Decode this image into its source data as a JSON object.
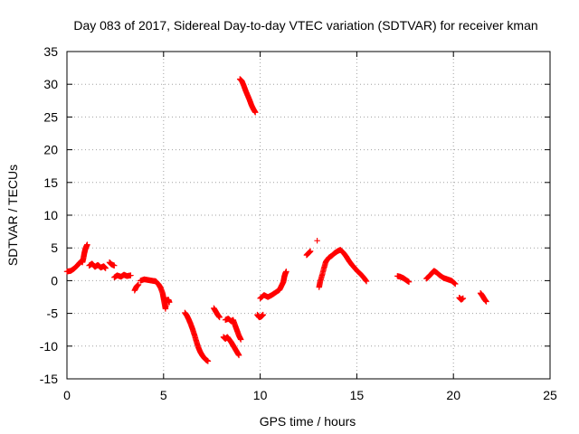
{
  "chart_data": {
    "type": "scatter",
    "title": "Day 083 of 2017, Sidereal Day-to-day VTEC variation (SDTVAR) for receiver kman",
    "xlabel": "GPS time / hours",
    "ylabel": "SDTVAR / TECUs",
    "xlim": [
      0,
      25
    ],
    "ylim": [
      -15,
      35
    ],
    "xticks": [
      0,
      5,
      10,
      15,
      20,
      25
    ],
    "yticks": [
      -15,
      -10,
      -5,
      0,
      5,
      10,
      15,
      20,
      25,
      30,
      35
    ],
    "xtick_labels": [
      "0",
      "5",
      "10",
      "15",
      "20",
      "25"
    ],
    "ytick_labels": [
      "-15",
      "-10",
      "-5",
      "0",
      "5",
      "10",
      "15",
      "20",
      "25",
      "30",
      "35"
    ],
    "grid": true,
    "marker": "+",
    "color": "#ff0000",
    "series": [
      {
        "name": "SDTVAR",
        "segments": [
          [
            [
              0.0,
              1.4
            ],
            [
              0.2,
              1.5
            ],
            [
              0.35,
              1.8
            ],
            [
              0.5,
              2.2
            ],
            [
              0.65,
              2.7
            ],
            [
              0.75,
              3.0
            ],
            [
              0.8,
              2.8
            ],
            [
              0.85,
              3.4
            ],
            [
              0.9,
              4.2
            ],
            [
              0.95,
              4.8
            ],
            [
              1.0,
              5.2
            ],
            [
              1.05,
              5.5
            ]
          ],
          [
            [
              1.15,
              2.3
            ],
            [
              1.3,
              2.6
            ],
            [
              1.45,
              2.1
            ],
            [
              1.6,
              2.4
            ],
            [
              1.75,
              2.0
            ],
            [
              1.9,
              2.2
            ],
            [
              2.0,
              1.9
            ]
          ],
          [
            [
              2.2,
              2.8
            ],
            [
              2.3,
              2.5
            ],
            [
              2.45,
              2.3
            ]
          ],
          [
            [
              2.45,
              0.5
            ],
            [
              2.6,
              0.8
            ],
            [
              2.8,
              0.6
            ],
            [
              2.95,
              0.9
            ],
            [
              3.1,
              0.7
            ],
            [
              3.3,
              0.8
            ]
          ],
          [
            [
              3.5,
              -1.5
            ],
            [
              3.6,
              -0.9
            ],
            [
              3.7,
              -0.6
            ]
          ],
          [
            [
              3.8,
              0.0
            ],
            [
              4.0,
              0.2
            ],
            [
              4.2,
              0.1
            ],
            [
              4.4,
              0.0
            ],
            [
              4.6,
              -0.1
            ],
            [
              4.75,
              -0.6
            ],
            [
              4.85,
              -1.1
            ],
            [
              4.95,
              -1.9
            ],
            [
              5.0,
              -2.7
            ],
            [
              5.05,
              -3.5
            ],
            [
              5.1,
              -4.3
            ],
            [
              5.15,
              -3.0
            ],
            [
              5.25,
              -2.9
            ],
            [
              5.3,
              -3.3
            ]
          ],
          [
            [
              6.1,
              -4.9
            ],
            [
              6.2,
              -5.3
            ],
            [
              6.3,
              -5.9
            ],
            [
              6.4,
              -6.6
            ],
            [
              6.5,
              -7.4
            ],
            [
              6.6,
              -8.3
            ],
            [
              6.7,
              -9.3
            ],
            [
              6.8,
              -10.2
            ],
            [
              6.9,
              -10.9
            ],
            [
              7.0,
              -11.4
            ],
            [
              7.1,
              -11.8
            ],
            [
              7.2,
              -12.1
            ],
            [
              7.3,
              -12.3
            ]
          ],
          [
            [
              7.6,
              -4.2
            ],
            [
              7.7,
              -4.7
            ],
            [
              7.8,
              -5.2
            ],
            [
              7.9,
              -5.6
            ]
          ],
          [
            [
              8.1,
              -8.6
            ],
            [
              8.2,
              -8.9
            ],
            [
              8.3,
              -8.6
            ],
            [
              8.4,
              -9.0
            ],
            [
              8.5,
              -9.4
            ],
            [
              8.6,
              -9.9
            ],
            [
              8.7,
              -10.4
            ],
            [
              8.8,
              -10.9
            ],
            [
              8.9,
              -11.4
            ]
          ],
          [
            [
              8.2,
              -6.0
            ],
            [
              8.35,
              -5.8
            ],
            [
              8.5,
              -6.2
            ],
            [
              8.6,
              -6.0
            ],
            [
              8.7,
              -6.8
            ],
            [
              8.8,
              -7.6
            ],
            [
              8.9,
              -8.4
            ],
            [
              9.0,
              -9.0
            ]
          ],
          [
            [
              8.95,
              30.8
            ],
            [
              9.05,
              30.5
            ],
            [
              9.15,
              29.8
            ],
            [
              9.25,
              29.0
            ],
            [
              9.35,
              28.3
            ],
            [
              9.45,
              27.6
            ],
            [
              9.55,
              26.8
            ],
            [
              9.65,
              26.2
            ],
            [
              9.75,
              25.7
            ]
          ],
          [
            [
              9.85,
              -5.2
            ],
            [
              9.95,
              -5.6
            ],
            [
              10.05,
              -5.5
            ],
            [
              10.15,
              -5.2
            ]
          ],
          [
            [
              10.0,
              -2.7
            ],
            [
              10.2,
              -2.2
            ],
            [
              10.4,
              -2.5
            ],
            [
              10.6,
              -2.2
            ],
            [
              10.8,
              -1.8
            ],
            [
              11.0,
              -1.4
            ],
            [
              11.1,
              -0.8
            ],
            [
              11.2,
              -0.2
            ],
            [
              11.25,
              0.6
            ],
            [
              11.3,
              1.1
            ],
            [
              11.35,
              1.4
            ]
          ],
          [
            [
              12.4,
              3.9
            ],
            [
              12.5,
              4.2
            ],
            [
              12.6,
              4.5
            ]
          ],
          [
            [
              12.95,
              6.1
            ]
          ],
          [
            [
              13.05,
              -1.0
            ],
            [
              13.1,
              -0.2
            ],
            [
              13.2,
              0.8
            ],
            [
              13.3,
              1.9
            ],
            [
              13.4,
              2.9
            ],
            [
              13.55,
              3.5
            ],
            [
              13.7,
              3.8
            ],
            [
              13.85,
              4.2
            ],
            [
              14.0,
              4.5
            ],
            [
              14.15,
              4.7
            ],
            [
              14.3,
              4.3
            ],
            [
              14.45,
              3.7
            ],
            [
              14.6,
              3.0
            ],
            [
              14.75,
              2.4
            ],
            [
              14.9,
              1.9
            ],
            [
              15.05,
              1.4
            ],
            [
              15.2,
              1.0
            ],
            [
              15.35,
              0.5
            ],
            [
              15.5,
              -0.1
            ]
          ],
          [
            [
              17.1,
              0.7
            ],
            [
              17.25,
              0.6
            ],
            [
              17.4,
              0.4
            ],
            [
              17.55,
              0.1
            ],
            [
              17.7,
              -0.2
            ]
          ],
          [
            [
              18.6,
              0.3
            ],
            [
              18.75,
              0.7
            ],
            [
              18.9,
              1.2
            ],
            [
              19.0,
              1.5
            ],
            [
              19.15,
              1.2
            ],
            [
              19.3,
              0.8
            ],
            [
              19.5,
              0.4
            ],
            [
              19.7,
              0.2
            ],
            [
              19.9,
              0.0
            ],
            [
              20.1,
              -0.5
            ]
          ],
          [
            [
              20.3,
              -2.6
            ],
            [
              20.4,
              -2.9
            ],
            [
              20.5,
              -2.7
            ]
          ],
          [
            [
              21.4,
              -1.9
            ],
            [
              21.5,
              -2.3
            ],
            [
              21.6,
              -2.8
            ],
            [
              21.7,
              -3.2
            ]
          ]
        ]
      }
    ]
  }
}
